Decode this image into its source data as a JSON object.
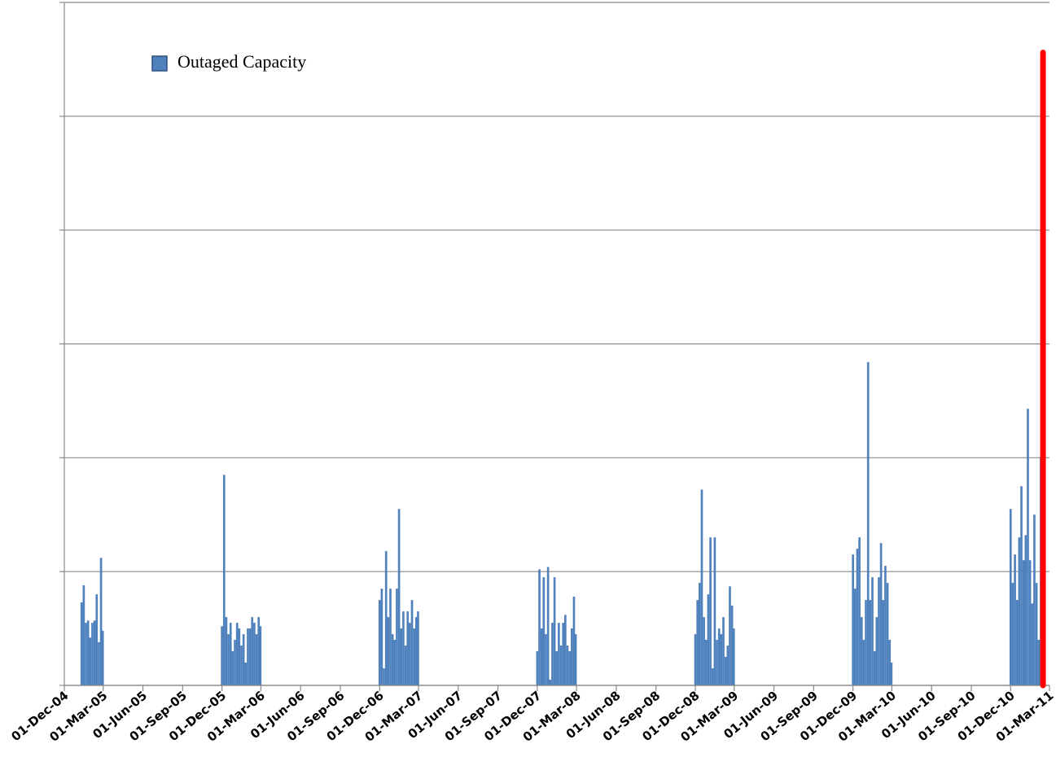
{
  "chart_data": {
    "type": "bar",
    "grid": true,
    "legend": "top-left",
    "xlim": [
      "2004-12-01",
      "2011-03-01"
    ],
    "xticks": [
      {
        "value": "2004-12-01",
        "label": "01-Dec-04"
      },
      {
        "value": "2005-03-01",
        "label": "01-Mar-05"
      },
      {
        "value": "2005-06-01",
        "label": "01-Jun-05"
      },
      {
        "value": "2005-09-01",
        "label": "01-Sep-05"
      },
      {
        "value": "2005-12-01",
        "label": "01-Dec-05"
      },
      {
        "value": "2006-03-01",
        "label": "01-Mar-06"
      },
      {
        "value": "2006-06-01",
        "label": "01-Jun-06"
      },
      {
        "value": "2006-09-01",
        "label": "01-Sep-06"
      },
      {
        "value": "2006-12-01",
        "label": "01-Dec-06"
      },
      {
        "value": "2007-03-01",
        "label": "01-Mar-07"
      },
      {
        "value": "2007-06-01",
        "label": "01-Jun-07"
      },
      {
        "value": "2007-09-01",
        "label": "01-Sep-07"
      },
      {
        "value": "2007-12-01",
        "label": "01-Dec-07"
      },
      {
        "value": "2008-03-01",
        "label": "01-Mar-08"
      },
      {
        "value": "2008-06-01",
        "label": "01-Jun-08"
      },
      {
        "value": "2008-09-01",
        "label": "01-Sep-08"
      },
      {
        "value": "2008-12-01",
        "label": "01-Dec-08"
      },
      {
        "value": "2009-03-01",
        "label": "01-Mar-09"
      },
      {
        "value": "2009-06-01",
        "label": "01-Jun-09"
      },
      {
        "value": "2009-09-01",
        "label": "01-Sep-09"
      },
      {
        "value": "2009-12-01",
        "label": "01-Dec-09"
      },
      {
        "value": "2010-03-01",
        "label": "01-Mar-10"
      },
      {
        "value": "2010-06-01",
        "label": "01-Jun-10"
      },
      {
        "value": "2010-09-01",
        "label": "01-Sep-10"
      },
      {
        "value": "2010-12-01",
        "label": "01-Dec-10"
      },
      {
        "value": "2011-03-01",
        "label": "01-Mar-11"
      }
    ],
    "ylim": [
      0,
      6
    ],
    "yticks": [
      0,
      1,
      2,
      3,
      4,
      5,
      6
    ],
    "x": [
      "2005-01-10",
      "2005-01-15",
      "2005-01-20",
      "2005-01-25",
      "2005-01-30",
      "2005-02-04",
      "2005-02-09",
      "2005-02-14",
      "2005-02-19",
      "2005-02-24",
      "2005-02-28",
      "2005-12-01",
      "2005-12-06",
      "2005-12-11",
      "2005-12-16",
      "2005-12-21",
      "2005-12-26",
      "2005-12-31",
      "2006-01-05",
      "2006-01-10",
      "2006-01-15",
      "2006-01-20",
      "2006-01-25",
      "2006-01-30",
      "2006-02-04",
      "2006-02-09",
      "2006-02-14",
      "2006-02-19",
      "2006-02-24",
      "2006-02-28",
      "2006-12-01",
      "2006-12-06",
      "2006-12-11",
      "2006-12-16",
      "2006-12-21",
      "2006-12-26",
      "2006-12-31",
      "2007-01-05",
      "2007-01-10",
      "2007-01-15",
      "2007-01-20",
      "2007-01-25",
      "2007-01-30",
      "2007-02-04",
      "2007-02-09",
      "2007-02-14",
      "2007-02-19",
      "2007-02-24",
      "2007-02-28",
      "2007-12-01",
      "2007-12-06",
      "2007-12-11",
      "2007-12-16",
      "2007-12-21",
      "2007-12-26",
      "2007-12-31",
      "2008-01-05",
      "2008-01-10",
      "2008-01-15",
      "2008-01-20",
      "2008-01-25",
      "2008-01-30",
      "2008-02-04",
      "2008-02-09",
      "2008-02-14",
      "2008-02-19",
      "2008-02-24",
      "2008-02-28",
      "2008-12-01",
      "2008-12-06",
      "2008-12-11",
      "2008-12-16",
      "2008-12-21",
      "2008-12-26",
      "2008-12-31",
      "2009-01-05",
      "2009-01-10",
      "2009-01-15",
      "2009-01-20",
      "2009-01-25",
      "2009-01-30",
      "2009-02-04",
      "2009-02-09",
      "2009-02-14",
      "2009-02-19",
      "2009-02-24",
      "2009-02-28",
      "2009-12-01",
      "2009-12-06",
      "2009-12-11",
      "2009-12-16",
      "2009-12-21",
      "2009-12-26",
      "2009-12-31",
      "2010-01-05",
      "2010-01-10",
      "2010-01-15",
      "2010-01-20",
      "2010-01-25",
      "2010-01-30",
      "2010-02-04",
      "2010-02-09",
      "2010-02-14",
      "2010-02-19",
      "2010-02-24",
      "2010-02-28",
      "2010-12-01",
      "2010-12-06",
      "2010-12-11",
      "2010-12-16",
      "2010-12-21",
      "2010-12-26",
      "2010-12-31",
      "2011-01-05",
      "2011-01-10",
      "2011-01-15",
      "2011-01-20",
      "2011-01-25",
      "2011-01-30",
      "2011-02-04",
      "2011-02-09",
      "2011-02-14"
    ],
    "series": [
      {
        "name": "Outaged Capacity",
        "color": "#4f81bd",
        "values": [
          0.73,
          0.88,
          0.55,
          0.57,
          0.42,
          0.55,
          0.57,
          0.8,
          0.38,
          1.12,
          0.48,
          0.52,
          1.85,
          0.6,
          0.45,
          0.55,
          0.3,
          0.4,
          0.55,
          0.5,
          0.35,
          0.45,
          0.2,
          0.5,
          0.5,
          0.6,
          0.55,
          0.45,
          0.6,
          0.52,
          0.75,
          0.85,
          0.15,
          1.18,
          0.6,
          0.85,
          0.45,
          0.4,
          0.85,
          1.55,
          0.5,
          0.65,
          0.35,
          0.65,
          0.55,
          0.75,
          0.5,
          0.6,
          0.65,
          0.3,
          1.02,
          0.5,
          0.95,
          0.45,
          1.04,
          0.05,
          0.55,
          0.95,
          0.3,
          0.55,
          0.35,
          0.55,
          0.62,
          0.35,
          0.3,
          0.5,
          0.78,
          0.45,
          0.45,
          0.75,
          0.9,
          1.72,
          0.6,
          0.4,
          0.8,
          1.3,
          0.15,
          1.3,
          0.4,
          0.5,
          0.45,
          0.6,
          0.25,
          0.35,
          0.87,
          0.7,
          0.5,
          1.15,
          0.85,
          1.2,
          1.3,
          0.6,
          0.4,
          0.75,
          2.84,
          0.75,
          0.95,
          0.3,
          0.6,
          0.95,
          1.25,
          0.75,
          1.05,
          0.9,
          0.4,
          0.2,
          1.55,
          0.9,
          1.15,
          0.75,
          1.3,
          1.75,
          1.1,
          1.32,
          2.43,
          1.1,
          0.72,
          1.5,
          0.9,
          0.4,
          2.0,
          0.4
        ]
      }
    ],
    "marker": {
      "x": "2011-02-14",
      "value": 5.56,
      "color": "#ff0000"
    }
  }
}
